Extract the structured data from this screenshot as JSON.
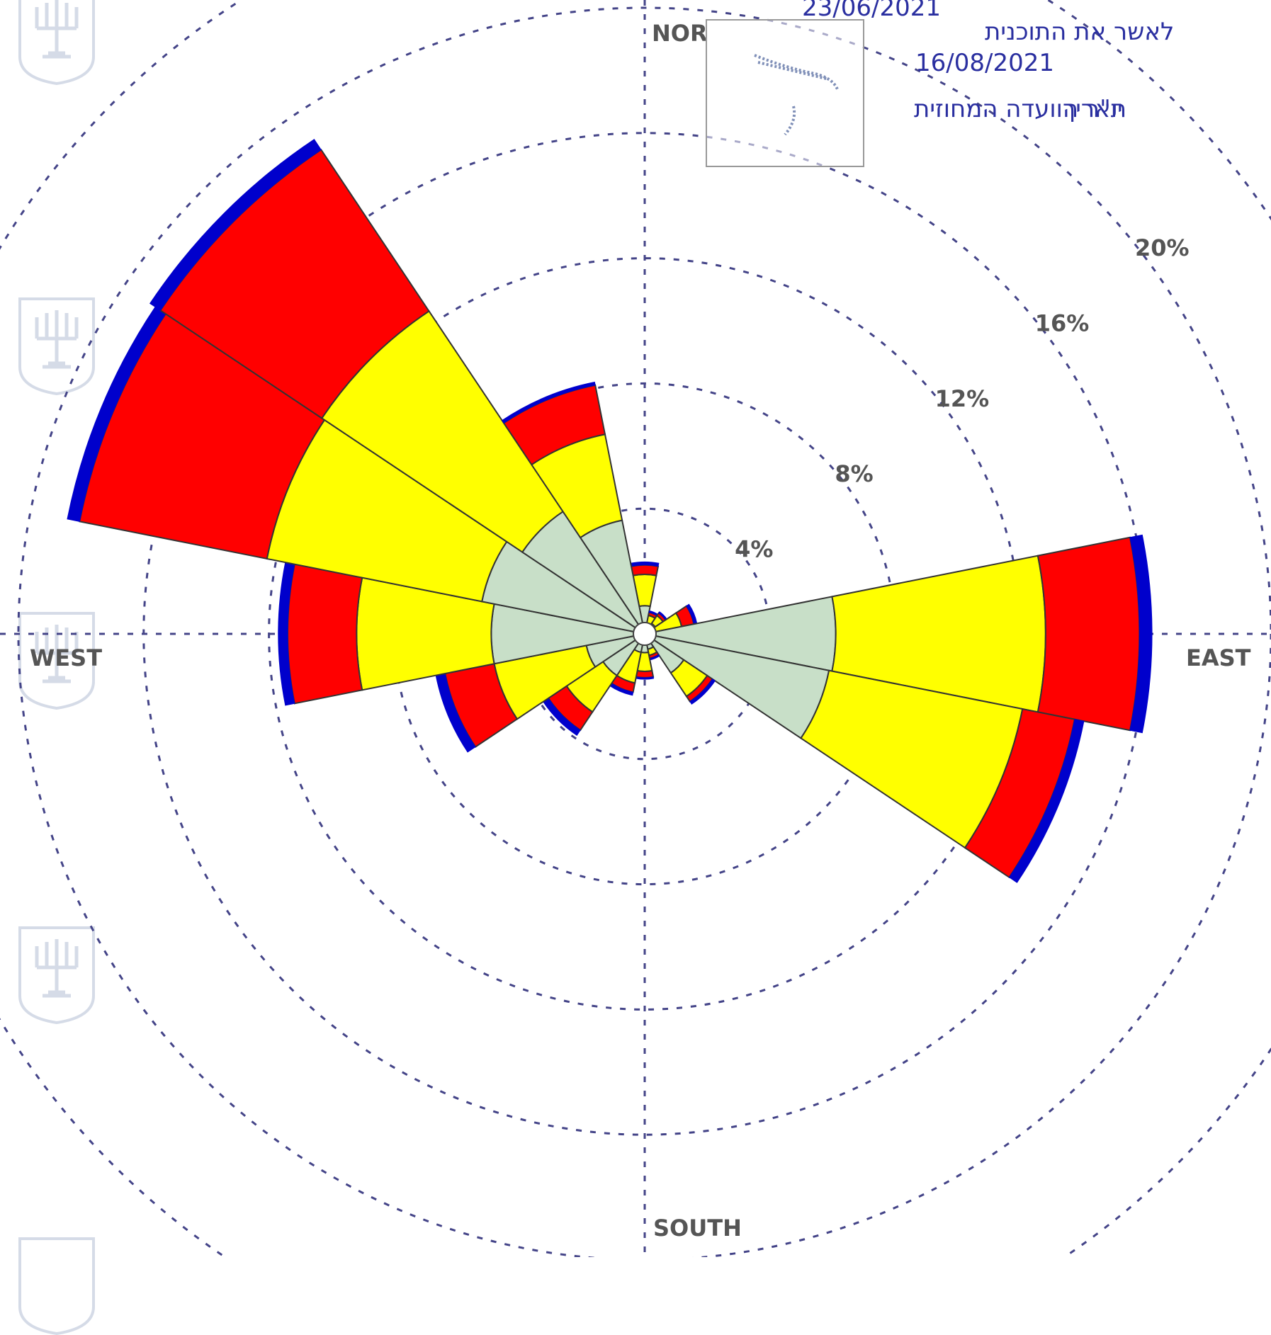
{
  "chart_data": {
    "type": "windrose",
    "directions": [
      "N",
      "NNE",
      "NE",
      "ENE",
      "E",
      "ESE",
      "SE",
      "SSE",
      "S",
      "SSW",
      "SW",
      "WSW",
      "W",
      "WNW",
      "NW",
      "NNW"
    ],
    "direction_angles_deg": [
      0,
      22.5,
      45,
      67.5,
      90,
      112.5,
      135,
      157.5,
      180,
      202.5,
      225,
      247.5,
      270,
      292.5,
      315,
      337.5
    ],
    "series": [
      {
        "color": "#c8dfc8",
        "cumulative": [
          0.9,
          0.3,
          0.4,
          0.3,
          6.1,
          6.0,
          1.5,
          0.5,
          0.6,
          0.6,
          1.6,
          1.9,
          4.9,
          5.3,
          4.7,
          3.7
        ]
      },
      {
        "color": "#ffff00",
        "cumulative": [
          1.9,
          0.6,
          0.7,
          1.2,
          12.8,
          12.3,
          2.4,
          0.7,
          1.2,
          1.6,
          3.0,
          4.9,
          9.2,
          12.3,
          12.4,
          6.5
        ]
      },
      {
        "color": "#ff0000",
        "cumulative": [
          2.2,
          0.7,
          0.8,
          1.6,
          15.8,
          14.0,
          2.6,
          0.8,
          1.4,
          1.9,
          3.7,
          6.5,
          11.4,
          18.4,
          18.6,
          8.1
        ]
      },
      {
        "color": "#0000cc",
        "cumulative": [
          2.3,
          0.75,
          0.85,
          1.7,
          16.2,
          14.3,
          2.7,
          0.85,
          1.45,
          2.0,
          3.9,
          6.8,
          11.7,
          18.8,
          19.0,
          8.2
        ]
      }
    ],
    "rings_percent": [
      4,
      8,
      12,
      16,
      20
    ],
    "ring_labels": [
      "4%",
      "8%",
      "12%",
      "16%",
      "20%"
    ],
    "axis_labels": {
      "north": "NOR",
      "east": "EAST",
      "south": "SOUTH",
      "west": "WEST"
    },
    "rmax": 25
  },
  "stamp": {
    "date_top": "23/06/2021",
    "approve_text": "לאשר את התוכנית",
    "date": "16/08/2021",
    "chair_text": "יו\"ר הוועדה המחוזית",
    "date_label": "תאריך"
  }
}
